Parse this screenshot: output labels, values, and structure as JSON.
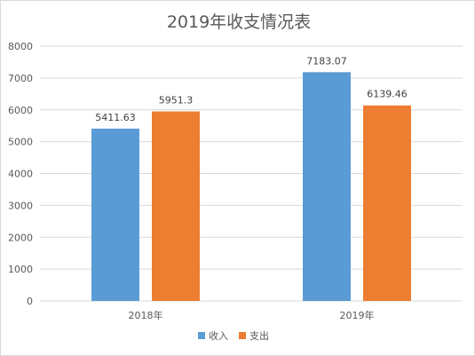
{
  "chart_data": {
    "type": "bar",
    "title": "2019年收支情况表",
    "xlabel": "",
    "ylabel": "",
    "categories": [
      "2018年",
      "2019年"
    ],
    "series": [
      {
        "name": "收入",
        "values": [
          5411.63,
          7183.07
        ],
        "labels": [
          "5411.63",
          "7183.07"
        ],
        "color": "#5b9bd5"
      },
      {
        "name": "支出",
        "values": [
          5951.3,
          6139.46
        ],
        "labels": [
          "5951.3",
          "6139.46"
        ],
        "color": "#ed7d31"
      }
    ],
    "ylim": [
      0,
      8000
    ],
    "yticks": [
      0,
      1000,
      2000,
      3000,
      4000,
      5000,
      6000,
      7000,
      8000
    ],
    "ytick_labels": [
      "0",
      "1000",
      "2000",
      "3000",
      "4000",
      "5000",
      "6000",
      "7000",
      "8000"
    ],
    "grid": true,
    "legend": "bottom",
    "gridline_color": "#d9d9d9"
  }
}
